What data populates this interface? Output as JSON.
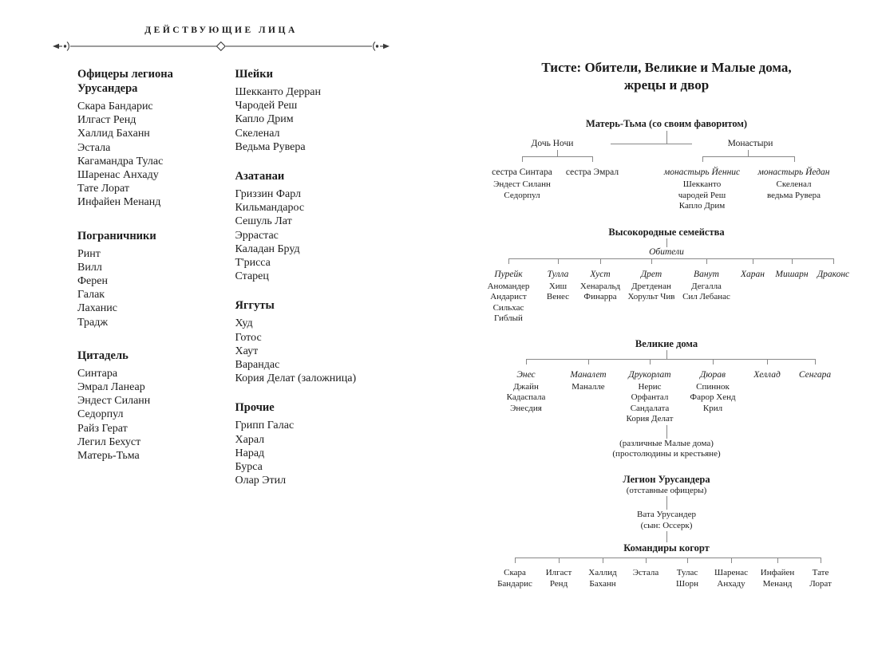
{
  "colors": {
    "text": "#1c1c1c",
    "tree_line": "#888888"
  },
  "icons": {
    "divider": "arrow-dot-paren-line-with-center-diamond"
  },
  "left_page": {
    "header": "ДЕЙСТВУЮЩИЕ ЛИЦА",
    "col1": [
      {
        "title": "Офицеры легиона Урусандера",
        "members": [
          "Скара Бандарис",
          "Илгаст Ренд",
          "Халлид Баханн",
          "Эстала",
          "Кагамандра Тулас",
          "Шаренас Анхаду",
          "Тате Лорат",
          "Инфайен Менанд"
        ]
      },
      {
        "title": "Пограничники",
        "members": [
          "Ринт",
          "Вилл",
          "Ферен",
          "Галак",
          "Лаханис",
          "Традж"
        ]
      },
      {
        "title": "Цитадель",
        "members": [
          "Синтара",
          "Эмрал Ланеар",
          "Эндест Силанн",
          "Седорпул",
          "Райз Герат",
          "Легил Бехуст",
          "Матерь-Тьма"
        ]
      }
    ],
    "col2": [
      {
        "title": "Шейки",
        "members": [
          "Шекканто Дерран",
          "Чародей Реш",
          "Капло Дрим",
          "Скеленал",
          "Ведьма Рувера"
        ]
      },
      {
        "title": "Азатанаи",
        "members": [
          "Гриззин Фарл",
          "Кильмандарос",
          "Сешуль Лат",
          "Эррастас",
          "Каладан Бруд",
          "Т'рисса",
          "Старец"
        ]
      },
      {
        "title": "Яггуты",
        "members": [
          "Худ",
          "Готос",
          "Хаут",
          "Варандас",
          "Кория Делат (заложница)"
        ]
      },
      {
        "title": "Прочие",
        "members": [
          "Грипп Галас",
          "Харал",
          "Нарад",
          "Бурса",
          "Олар Этил"
        ]
      }
    ]
  },
  "right_page": {
    "title_line1": "Тисте: Обители, Великие и Малые дома,",
    "title_line2": "жрецы и двор",
    "tree": {
      "root": "Матерь-Тьма (со своим фаворитом)",
      "daughter": {
        "label": "Дочь Ночи",
        "groups": [
          {
            "header": "сестра Синтара",
            "members": [
              "Эндест Силанн",
              "Седорпул"
            ]
          },
          {
            "header": "сестра Эмрал",
            "members": []
          }
        ]
      },
      "monasteries": {
        "label": "Монастыри",
        "groups": [
          {
            "header": "монастырь Йеннис",
            "members": [
              "Шекканто",
              "чародей Реш",
              "Капло Дрим"
            ]
          },
          {
            "header": "монастырь Йедан",
            "members": [
              "Скеленал",
              "ведьма Рувера"
            ]
          }
        ]
      },
      "highborn": {
        "title": "Высокородные семейства",
        "subtitle": "Обители",
        "houses": [
          {
            "name": "Пурейк",
            "members": [
              "Аномандер",
              "Андарист",
              "Сильхас",
              "Гиблый"
            ]
          },
          {
            "name": "Тулла",
            "members": [
              "Хиш",
              "Венес"
            ]
          },
          {
            "name": "Хуст",
            "members": [
              "Хенаральд",
              "Финарра"
            ]
          },
          {
            "name": "Дрет",
            "members": [
              "Дретденан",
              "Хорульт Чив"
            ]
          },
          {
            "name": "Ванут",
            "members": [
              "Дегалла",
              "Сил Лебанас"
            ]
          },
          {
            "name": "Харан",
            "members": []
          },
          {
            "name": "Мишарн",
            "members": []
          },
          {
            "name": "Драконс",
            "members": []
          }
        ]
      },
      "great": {
        "title": "Великие дома",
        "houses": [
          {
            "name": "Энес",
            "members": [
              "Джайн",
              "Кадаспала",
              "Энесдия"
            ]
          },
          {
            "name": "Маналет",
            "members": [
              "Маналле"
            ]
          },
          {
            "name": "Друкорлат",
            "members": [
              "Нерис",
              "Орфантал",
              "Сандалата",
              "Кория Делат"
            ]
          },
          {
            "name": "Дюрав",
            "members": [
              "Спиннок",
              "Фарор Хенд",
              "Крил"
            ]
          },
          {
            "name": "Хеллад",
            "members": []
          },
          {
            "name": "Сенгара",
            "members": []
          }
        ],
        "note1": "(различные Малые дома)",
        "note2": "(простолюдины и крестьяне)"
      },
      "legion": {
        "title": "Легион Урусандера",
        "subtitle": "(отставные офицеры)",
        "leader": "Вата Урусандер",
        "leader_note": "(сын: Оссерк)"
      },
      "commanders": {
        "title": "Командиры когорт",
        "names": [
          "Скара Бандарис",
          "Илгаст Ренд",
          "Халлид Баханн",
          "Эстала",
          "Тулас Шорн",
          "Шаренас Анхаду",
          "Инфайен Менанд",
          "Тате Лорат"
        ]
      }
    }
  }
}
